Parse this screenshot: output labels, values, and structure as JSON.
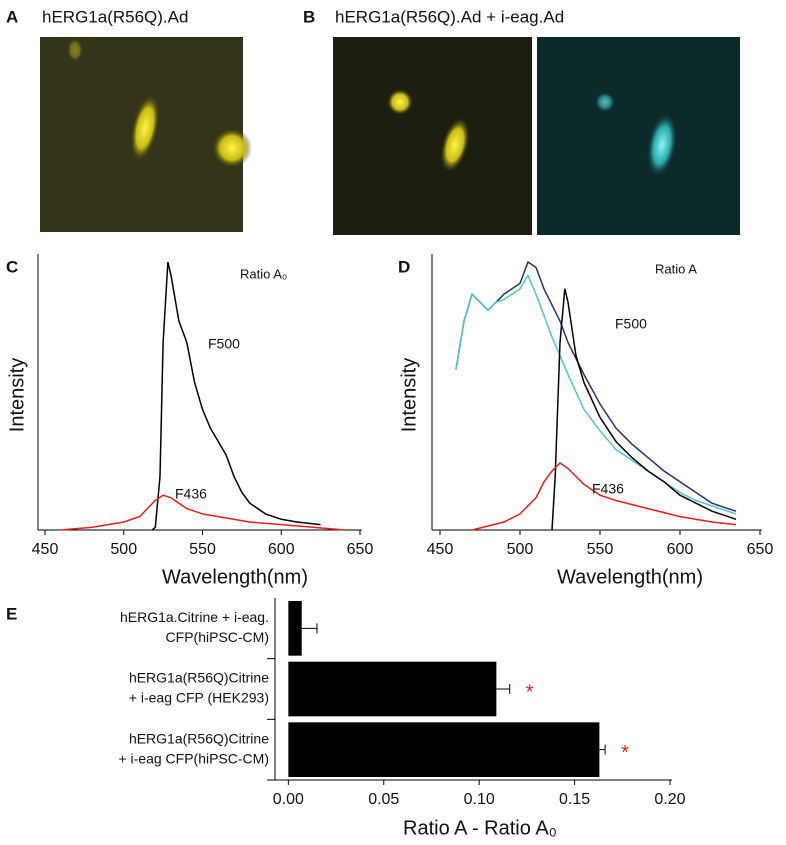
{
  "images": [
    {
      "label": "A",
      "title": "hERG1a(R56Q).Ad"
    },
    {
      "label": "B",
      "title": "hERG1a(R56Q).Ad + i-eag.Ad"
    }
  ],
  "chart_data": [
    {
      "type": "line",
      "label": "C",
      "annotation": "Ratio A₀",
      "x_label": "Wavelength(nm)",
      "y_label": "Intensity",
      "xlim": [
        450,
        650
      ],
      "xticks": [
        450,
        500,
        550,
        600,
        650
      ],
      "ylim": [
        0,
        100
      ],
      "series": [
        {
          "name": "F500",
          "color": "#000000",
          "x": [
            518,
            520,
            523,
            525,
            528,
            530,
            535,
            540,
            545,
            550,
            555,
            560,
            565,
            570,
            575,
            580,
            590,
            600,
            610,
            625
          ],
          "values": [
            0,
            1,
            20,
            70,
            100,
            95,
            78,
            70,
            55,
            45,
            38,
            33,
            28,
            20,
            14,
            10,
            6,
            4,
            3,
            2
          ]
        },
        {
          "name": "F436",
          "color": "#e0201b",
          "x": [
            460,
            480,
            500,
            510,
            515,
            520,
            525,
            530,
            535,
            540,
            550,
            560,
            580,
            600,
            620,
            640
          ],
          "values": [
            0,
            1,
            3,
            5,
            8,
            11,
            13,
            12,
            10,
            8,
            6,
            5,
            3,
            2,
            1,
            0
          ]
        }
      ]
    },
    {
      "type": "line",
      "label": "D",
      "annotation": "Ratio A",
      "x_label": "Wavelength(nm)",
      "y_label": "Intensity",
      "xlim": [
        450,
        650
      ],
      "xticks": [
        450,
        500,
        550,
        600,
        650
      ],
      "ylim": [
        0,
        100
      ],
      "series": [
        {
          "color": "#2b2f6e",
          "x": [
            460,
            465,
            470,
            475,
            480,
            485,
            490,
            495,
            500,
            505,
            510,
            515,
            520,
            525,
            530,
            540,
            550,
            560,
            570,
            580,
            590,
            600,
            610,
            620,
            630,
            635
          ],
          "values": [
            60,
            78,
            88,
            85,
            82,
            85,
            88,
            90,
            92,
            100,
            98,
            90,
            84,
            78,
            70,
            58,
            47,
            38,
            32,
            27,
            22,
            18,
            14,
            10,
            8,
            7
          ]
        },
        {
          "color": "#4fc3d6",
          "x": [
            460,
            465,
            470,
            475,
            480,
            485,
            490,
            495,
            500,
            505,
            510,
            520,
            530,
            540,
            550,
            560,
            570,
            580,
            590,
            600,
            610,
            620,
            630,
            635
          ],
          "values": [
            60,
            78,
            88,
            85,
            82,
            85,
            86,
            88,
            90,
            95,
            88,
            72,
            58,
            45,
            37,
            30,
            26,
            22,
            18,
            14,
            11,
            9,
            7,
            6
          ]
        },
        {
          "name": "F500",
          "color": "#000000",
          "x": [
            520,
            522,
            525,
            528,
            530,
            535,
            540,
            550,
            560,
            570,
            580,
            590,
            600,
            610,
            620,
            630,
            635
          ],
          "values": [
            0,
            20,
            70,
            90,
            85,
            65,
            55,
            42,
            33,
            27,
            22,
            18,
            13,
            10,
            7,
            5,
            4
          ]
        },
        {
          "name": "F436",
          "color": "#e0201b",
          "x": [
            470,
            490,
            500,
            510,
            515,
            520,
            525,
            530,
            540,
            550,
            560,
            580,
            600,
            620,
            635
          ],
          "values": [
            0,
            3,
            6,
            12,
            18,
            22,
            25,
            23,
            17,
            13,
            11,
            8,
            5,
            3,
            2
          ]
        }
      ]
    },
    {
      "type": "hbar",
      "label": "E",
      "x_label": "Ratio A - Ratio A₀",
      "xlim": [
        -0.007,
        0.2
      ],
      "xticks": [
        {
          "value": 0,
          "label": "0.00"
        },
        {
          "value": 0.05,
          "label": "0.05"
        },
        {
          "value": 0.1,
          "label": "0.10"
        },
        {
          "value": 0.15,
          "label": "0.15"
        },
        {
          "value": 0.2,
          "label": "0.20"
        }
      ],
      "categories": [
        [
          "hERG1a.Citrine + i-eag.",
          "CFP(hiPSC-CM)"
        ],
        [
          "hERG1a(R56Q)Citrine",
          "+ i-eag CFP (HEK293)"
        ],
        [
          "hERG1a(R56Q)Citrine",
          "+ i-eag CFP(hiPSC-CM)"
        ]
      ],
      "values": [
        0.007,
        0.109,
        0.163
      ],
      "errors": [
        0.008,
        0.007,
        0.003
      ],
      "significance": [
        null,
        "*",
        "*"
      ],
      "color": "#000000"
    }
  ]
}
